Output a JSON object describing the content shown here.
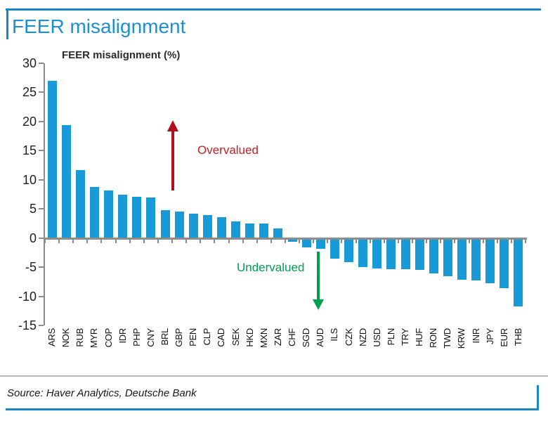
{
  "header": {
    "title": "FEER misalignment"
  },
  "chart_data": {
    "type": "bar",
    "title": "FEER misalignment (%)",
    "categories": [
      "ARS",
      "NOK",
      "RUB",
      "MYR",
      "COP",
      "IDR",
      "PHP",
      "CNY",
      "BRL",
      "GBP",
      "PEN",
      "CLP",
      "CAD",
      "SEK",
      "HKD",
      "MXN",
      "ZAR",
      "CHF",
      "SGD",
      "AUD",
      "ILS",
      "CZK",
      "NZD",
      "USD",
      "PLN",
      "TRY",
      "HUF",
      "RON",
      "TWD",
      "KRW",
      "INR",
      "JPY",
      "EUR",
      "THB"
    ],
    "values": [
      27.0,
      19.4,
      11.7,
      8.8,
      8.2,
      7.4,
      7.1,
      7.0,
      4.8,
      4.5,
      4.2,
      3.9,
      3.6,
      2.8,
      2.5,
      2.5,
      1.7,
      -0.7,
      -1.6,
      -1.9,
      -3.5,
      -4.2,
      -5.0,
      -5.2,
      -5.3,
      -5.4,
      -5.5,
      -6.1,
      -6.6,
      -7.2,
      -7.3,
      -7.8,
      -8.6,
      -11.8
    ],
    "xlabel": "",
    "ylabel": "",
    "ylim": [
      -15,
      30
    ],
    "yticks": [
      30,
      25,
      20,
      15,
      10,
      5,
      0,
      -5,
      -10,
      -15
    ],
    "grid": false,
    "legend": false,
    "bar_color": "#189AD7",
    "annotations": [
      {
        "text": "Overvalued",
        "color": "#BE2026",
        "arrow": "up"
      },
      {
        "text": "Undervalued",
        "color": "#00A04E",
        "arrow": "down"
      }
    ]
  },
  "footer": {
    "source": "Source: Haver Analytics, Deutsche Bank"
  },
  "colors": {
    "accent_blue": "#1B86C6",
    "title_blue": "#1E90CF",
    "bar_blue": "#189AD7",
    "axis_gray": "#8C8C8C",
    "arrow_red": "#B00F1D",
    "arrow_green": "#00A04E"
  }
}
